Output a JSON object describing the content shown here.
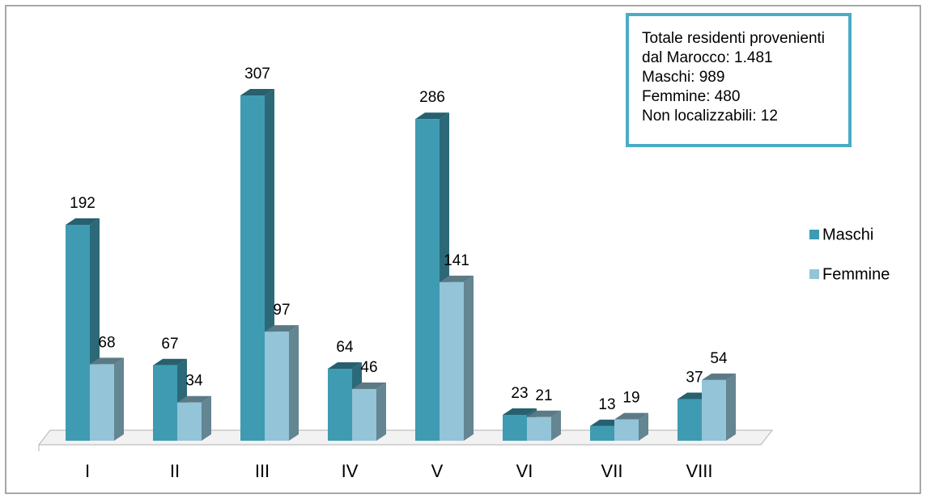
{
  "chart_data": {
    "type": "bar3d",
    "categories": [
      "I",
      "II",
      "III",
      "IV",
      "V",
      "VI",
      "VII",
      "VIII"
    ],
    "series": [
      {
        "name": "Maschi",
        "color": "#3f9bb2",
        "values": [
          192,
          67,
          307,
          64,
          286,
          23,
          13,
          37
        ]
      },
      {
        "name": "Femmine",
        "color": "#93c4d7",
        "values": [
          68,
          34,
          97,
          46,
          141,
          21,
          19,
          54
        ]
      }
    ],
    "annotation": [
      "Totale residenti provenienti",
      "dal Marocco: 1.481",
      "Maschi: 989",
      "Femmine: 480",
      "Non localizzabili: 12"
    ],
    "legend": "right"
  }
}
